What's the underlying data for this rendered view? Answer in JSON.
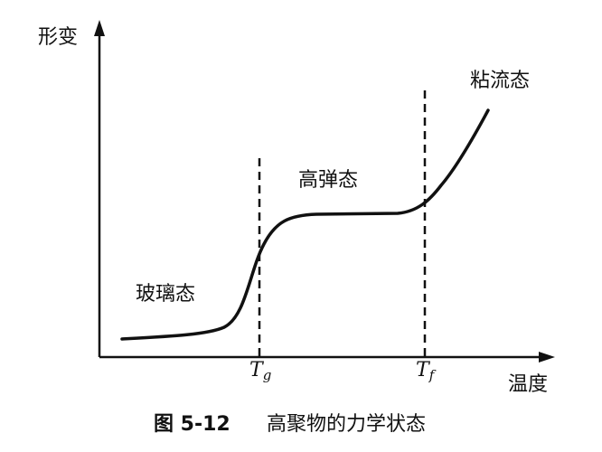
{
  "axes": {
    "y_label": "形变",
    "x_label": "温度"
  },
  "markers": [
    {
      "symbol": "T",
      "subscript": "g"
    },
    {
      "symbol": "T",
      "subscript": "f"
    }
  ],
  "regions": [
    "玻璃态",
    "高弹态",
    "粘流态"
  ],
  "caption": {
    "number": "图 5-12",
    "title": "高聚物的力学状态"
  }
}
